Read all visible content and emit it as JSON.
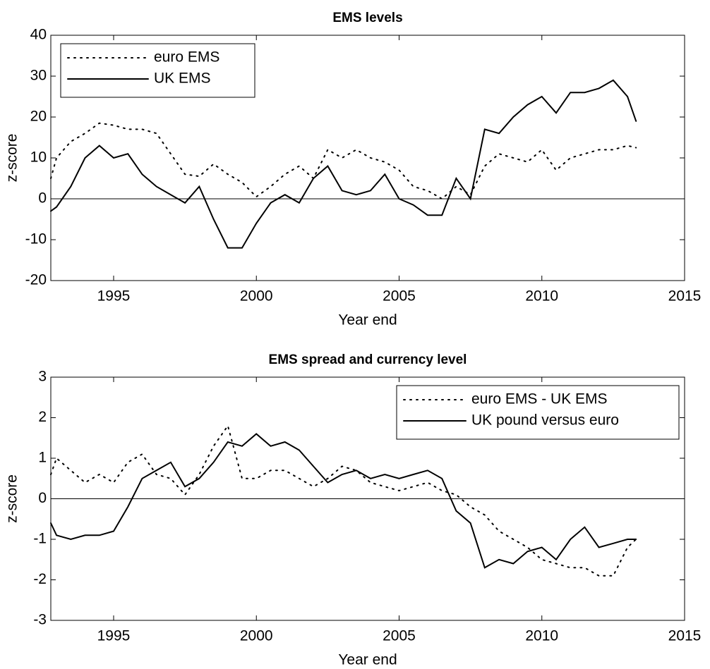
{
  "chart_data": [
    {
      "type": "line",
      "title": "EMS levels",
      "x_label": "Year end",
      "y_label": "z-score",
      "x": [
        1992.8,
        1993,
        1993.5,
        1994,
        1994.5,
        1995,
        1995.5,
        1996,
        1996.5,
        1997,
        1997.5,
        1998,
        1998.5,
        1999,
        1999.5,
        2000,
        2000.5,
        2001,
        2001.5,
        2002,
        2002.5,
        2003,
        2003.5,
        2004,
        2004.5,
        2005,
        2005.5,
        2006,
        2006.5,
        2007,
        2007.5,
        2008,
        2008.5,
        2009,
        2009.5,
        2010,
        2010.5,
        2011,
        2011.5,
        2012,
        2012.5,
        2013,
        2013.3
      ],
      "series": [
        {
          "name": "euro EMS",
          "color": "#000000",
          "dash": "dotted",
          "values": [
            5,
            10,
            14,
            16,
            18.5,
            18,
            17,
            17,
            16,
            11,
            6,
            5.5,
            8.5,
            6,
            4,
            0.5,
            3,
            6,
            8,
            5,
            12,
            10,
            12,
            10,
            9,
            7,
            3,
            2,
            0,
            3,
            1,
            8,
            11,
            10,
            9,
            12,
            7,
            10,
            11,
            12,
            12,
            13,
            12.5
          ]
        },
        {
          "name": "UK EMS",
          "color": "#000000",
          "dash": "solid",
          "values": [
            -3,
            -2,
            3,
            10,
            13,
            10,
            11,
            6,
            3,
            1,
            -1,
            3,
            -5,
            -12,
            -12,
            -6,
            -1,
            1,
            -1,
            5,
            8,
            2,
            1,
            2,
            6,
            0,
            -1.5,
            -4,
            -4,
            5,
            0,
            17,
            16,
            20,
            23,
            25,
            21,
            26,
            26,
            27,
            29,
            25,
            19
          ]
        }
      ],
      "xlim": [
        1992.8,
        2015
      ],
      "xticks": [
        1995,
        2000,
        2005,
        2010,
        2015
      ],
      "ylim": [
        -20,
        40
      ],
      "yticks": [
        -20,
        -10,
        0,
        10,
        20,
        30,
        40
      ],
      "legend": "upper-left"
    },
    {
      "type": "line",
      "title": "EMS spread and currency level",
      "x_label": "Year end",
      "y_label": "z-score",
      "x": [
        1992.8,
        1993,
        1993.5,
        1994,
        1994.5,
        1995,
        1995.5,
        1996,
        1996.5,
        1997,
        1997.5,
        1998,
        1998.5,
        1999,
        1999.5,
        2000,
        2000.5,
        2001,
        2001.5,
        2002,
        2002.5,
        2003,
        2003.5,
        2004,
        2004.5,
        2005,
        2005.5,
        2006,
        2006.5,
        2007,
        2007.5,
        2008,
        2008.5,
        2009,
        2009.5,
        2010,
        2010.5,
        2011,
        2011.5,
        2012,
        2012.5,
        2013,
        2013.3
      ],
      "series": [
        {
          "name": "euro EMS - UK EMS",
          "color": "#000000",
          "dash": "dotted",
          "values": [
            0.6,
            1.0,
            0.7,
            0.4,
            0.6,
            0.4,
            0.9,
            1.1,
            0.6,
            0.5,
            0.1,
            0.6,
            1.3,
            1.8,
            0.5,
            0.5,
            0.7,
            0.7,
            0.5,
            0.3,
            0.5,
            0.8,
            0.7,
            0.4,
            0.3,
            0.2,
            0.3,
            0.4,
            0.2,
            0.1,
            -0.2,
            -0.4,
            -0.8,
            -1.0,
            -1.2,
            -1.5,
            -1.6,
            -1.7,
            -1.7,
            -1.9,
            -1.9,
            -1.2,
            -1.0
          ]
        },
        {
          "name": "UK pound versus euro",
          "color": "#000000",
          "dash": "solid",
          "values": [
            -0.6,
            -0.9,
            -1.0,
            -0.9,
            -0.9,
            -0.8,
            -0.2,
            0.5,
            0.7,
            0.9,
            0.3,
            0.5,
            0.9,
            1.4,
            1.3,
            1.6,
            1.3,
            1.4,
            1.2,
            0.8,
            0.4,
            0.6,
            0.7,
            0.5,
            0.6,
            0.5,
            0.6,
            0.7,
            0.5,
            -0.3,
            -0.6,
            -1.7,
            -1.5,
            -1.6,
            -1.3,
            -1.2,
            -1.5,
            -1.0,
            -0.7,
            -1.2,
            -1.1,
            -1.0,
            -1.0
          ]
        }
      ],
      "xlim": [
        1992.8,
        2015
      ],
      "xticks": [
        1995,
        2000,
        2005,
        2010,
        2015
      ],
      "ylim": [
        -3,
        3
      ],
      "yticks": [
        -3,
        -2,
        -1,
        0,
        1,
        2,
        3
      ],
      "legend": "upper-right"
    }
  ]
}
